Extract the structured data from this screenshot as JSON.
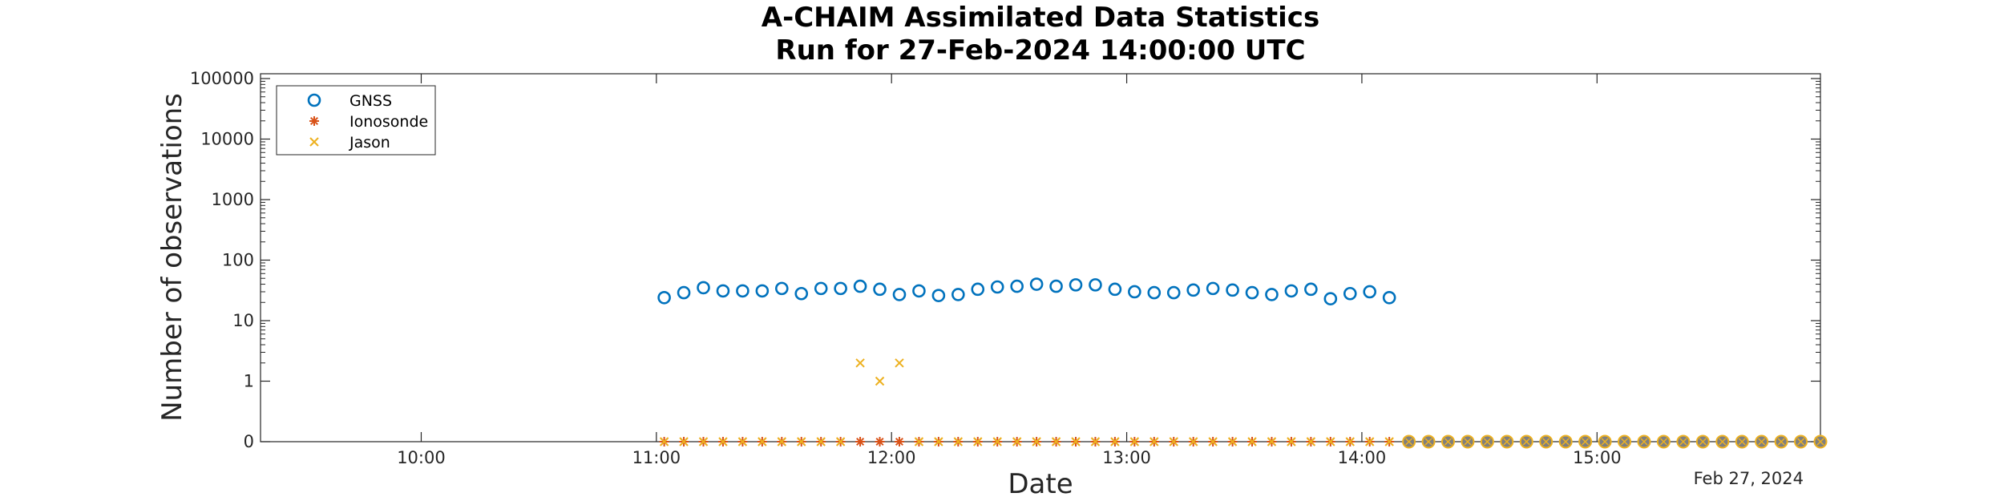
{
  "chart_data": {
    "type": "scatter",
    "title": "A-CHAIM Assimilated Data Statistics",
    "subtitle": "Run for 27-Feb-2024 14:00:00 UTC",
    "xlabel": "Date",
    "ylabel": "Number of observations",
    "x_date_note": "Feb 27, 2024",
    "x_range": [
      "09:19",
      "15:57"
    ],
    "x_ticks": [
      "10:00",
      "11:00",
      "12:00",
      "13:00",
      "14:00",
      "15:00"
    ],
    "y_scale": "log with zero baseline",
    "y_ticks": [
      "0",
      "1",
      "10",
      "100",
      "1000",
      "10000",
      "100000"
    ],
    "grid": false,
    "legend_position": "top-left",
    "colors": {
      "gnss": "#0072BD",
      "ionosonde": "#D95319",
      "jason": "#EDB120"
    },
    "series": [
      {
        "name": "GNSS",
        "marker": "circle",
        "x": [
          "11:02",
          "11:07",
          "11:12",
          "11:17",
          "11:22",
          "11:27",
          "11:32",
          "11:37",
          "11:42",
          "11:47",
          "11:52",
          "11:57",
          "12:02",
          "12:07",
          "12:12",
          "12:17",
          "12:22",
          "12:27",
          "12:32",
          "12:37",
          "12:42",
          "12:47",
          "12:52",
          "12:57",
          "13:02",
          "13:07",
          "13:12",
          "13:17",
          "13:22",
          "13:27",
          "13:32",
          "13:37",
          "13:42",
          "13:47",
          "13:52",
          "13:57",
          "14:02",
          "14:07"
        ],
        "y": [
          24,
          29,
          35,
          31,
          31,
          31,
          34,
          28,
          34,
          34,
          37,
          33,
          27,
          31,
          26,
          27,
          33,
          36,
          37,
          40,
          37,
          39,
          39,
          33,
          30,
          29,
          29,
          32,
          34,
          32,
          29,
          27,
          31,
          33,
          23,
          28,
          30,
          24
        ]
      },
      {
        "name": "Ionosonde",
        "marker": "asterisk",
        "x": [
          "11:02",
          "11:07",
          "11:12",
          "11:17",
          "11:22",
          "11:27",
          "11:32",
          "11:37",
          "11:42",
          "11:47",
          "11:52",
          "11:57",
          "12:02",
          "12:07",
          "12:12",
          "12:17",
          "12:22",
          "12:27",
          "12:32",
          "12:37",
          "12:42",
          "12:47",
          "12:52",
          "12:57",
          "13:02",
          "13:07",
          "13:12",
          "13:17",
          "13:22",
          "13:27",
          "13:32",
          "13:37",
          "13:42",
          "13:47",
          "13:52",
          "13:57",
          "14:02",
          "14:07"
        ],
        "y": [
          0,
          0,
          0,
          0,
          0,
          0,
          0,
          0,
          0,
          0,
          0,
          0,
          0,
          0,
          0,
          0,
          0,
          0,
          0,
          0,
          0,
          0,
          0,
          0,
          0,
          0,
          0,
          0,
          0,
          0,
          0,
          0,
          0,
          0,
          0,
          0,
          0,
          0
        ]
      },
      {
        "name": "Jason",
        "marker": "x",
        "x": [
          "11:02",
          "11:07",
          "11:12",
          "11:17",
          "11:22",
          "11:27",
          "11:32",
          "11:37",
          "11:42",
          "11:47",
          "11:52",
          "11:57",
          "12:02",
          "12:07",
          "12:12",
          "12:17",
          "12:22",
          "12:27",
          "12:32",
          "12:37",
          "12:42",
          "12:47",
          "12:52",
          "12:57",
          "13:02",
          "13:07",
          "13:12",
          "13:17",
          "13:22",
          "13:27",
          "13:32",
          "13:37",
          "13:42",
          "13:47",
          "13:52",
          "13:57",
          "14:02",
          "14:07"
        ],
        "y": [
          0,
          0,
          0,
          0,
          0,
          0,
          0,
          0,
          0,
          0,
          2,
          1,
          2,
          0,
          0,
          0,
          0,
          0,
          0,
          0,
          0,
          0,
          0,
          0,
          0,
          0,
          0,
          0,
          0,
          0,
          0,
          0,
          0,
          0,
          0,
          0,
          0,
          0
        ]
      },
      {
        "name": "",
        "marker": "filled-circle",
        "x": [
          "14:12",
          "14:17",
          "14:22",
          "14:27",
          "14:32",
          "14:37",
          "14:42",
          "14:47",
          "14:52",
          "14:57",
          "15:02",
          "15:07",
          "15:12",
          "15:17",
          "15:22",
          "15:27",
          "15:32",
          "15:37",
          "15:42",
          "15:47",
          "15:52",
          "15:57"
        ],
        "y": [
          0,
          0,
          0,
          0,
          0,
          0,
          0,
          0,
          0,
          0,
          0,
          0,
          0,
          0,
          0,
          0,
          0,
          0,
          0,
          0,
          0,
          0
        ]
      }
    ]
  }
}
